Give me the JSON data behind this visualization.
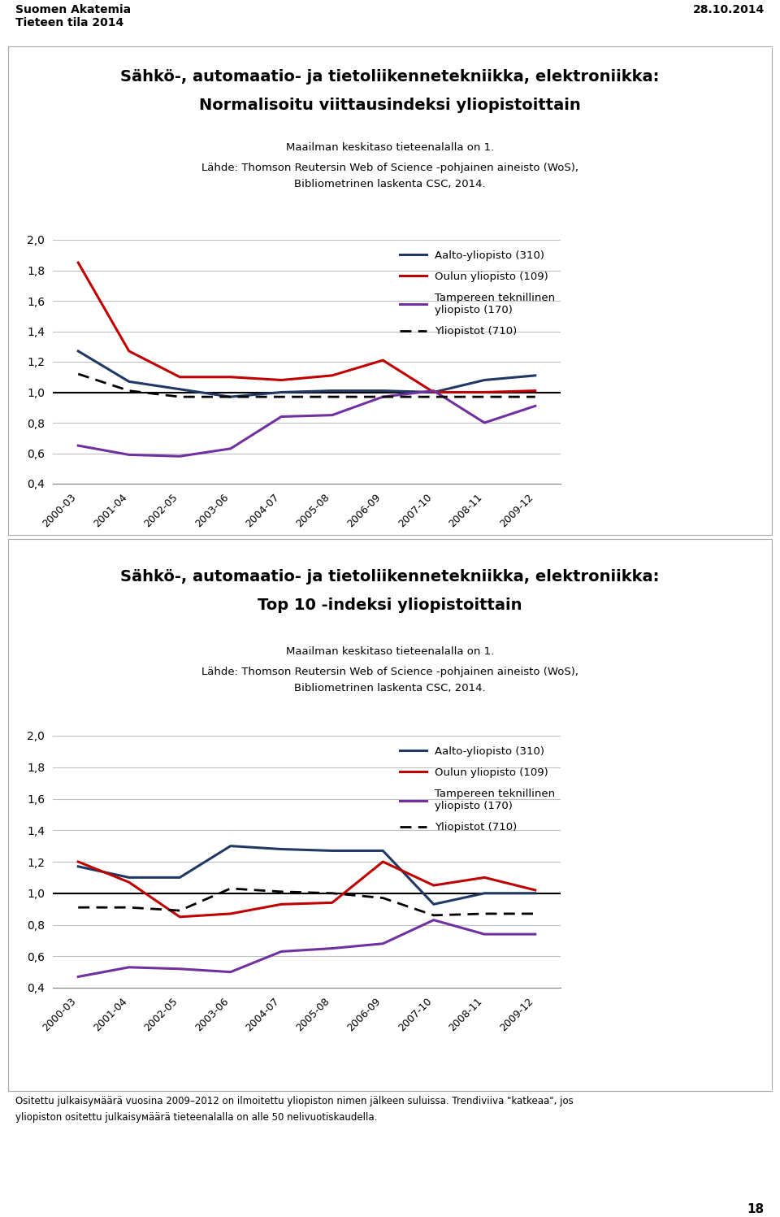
{
  "header_left": "Suomen Akatemia\nTieteen tila 2014",
  "header_right": "28.10.2014",
  "page_number": "18",
  "subtitle_line1": "Maailman keskitaso tieteenalalla on 1.",
  "subtitle_line2": "Lähde: Thomson Reutersin Web of Science -pohjainen aineisto (WoS),",
  "subtitle_line3": "Bibliometrinen laskenta CSC, 2014.",
  "footer_line1": "Ositettu julkaisумäärä vuosina 2009–2012 on ilmoitettu yliopiston nimen jälkeen suluissa. Trendiviiva \"katkeaa\", jos",
  "footer_line2": "yliopiston ositettu julkaisумäärä tieteenalalla on alle 50 nelivuotiskaudella.",
  "chart1_title_line1": "Sähkö-, automaatio- ja tietoliikennetekniikka, elektroniikka:",
  "chart1_title_line2": "Normalisoitu viittausindeksi yliopistoittain",
  "chart2_title_line1": "Sähkö-, automaatio- ja tietoliikennetekniikka, elektroniikka:",
  "chart2_title_line2": "Top 10 -indeksi yliopistoittain",
  "x_labels": [
    "2000-03",
    "2001-04",
    "2002-05",
    "2003-06",
    "2004-07",
    "2005-08",
    "2006-09",
    "2007-10",
    "2008-11",
    "2009-12"
  ],
  "ylim": [
    0.4,
    2.0
  ],
  "yticks": [
    0.4,
    0.6,
    0.8,
    1.0,
    1.2,
    1.4,
    1.6,
    1.8,
    2.0
  ],
  "legend_label_aalto": "Aalto-yliopisto (310)",
  "legend_label_oulu": "Oulun yliopisto (109)",
  "legend_label_tampere": "Tampereen teknillinen\nyliopisto (170)",
  "legend_label_yliopistot": "Yliopistot (710)",
  "color_aalto": "#1F3864",
  "color_oulu": "#C00000",
  "color_tampere": "#7030A0",
  "color_yliopistot": "#000000",
  "chart1": {
    "aalto": [
      1.27,
      1.07,
      1.02,
      0.97,
      1.0,
      1.01,
      1.01,
      1.0,
      1.08,
      1.11
    ],
    "oulu": [
      1.85,
      1.27,
      1.1,
      1.1,
      1.08,
      1.11,
      1.21,
      1.0,
      1.0,
      1.01
    ],
    "tampere": [
      0.65,
      0.59,
      0.58,
      0.63,
      0.84,
      0.85,
      0.97,
      1.01,
      0.8,
      0.91
    ],
    "yliopistot": [
      1.12,
      1.01,
      0.97,
      0.97,
      0.97,
      0.97,
      0.97,
      0.97,
      0.97,
      0.97
    ]
  },
  "chart2": {
    "aalto": [
      1.17,
      1.1,
      1.1,
      1.3,
      1.28,
      1.27,
      1.27,
      0.93,
      1.0,
      1.0
    ],
    "oulu": [
      1.2,
      1.07,
      0.85,
      0.87,
      0.93,
      0.94,
      1.2,
      1.05,
      1.1,
      1.02
    ],
    "tampere": [
      0.47,
      0.53,
      0.52,
      0.5,
      0.63,
      0.65,
      0.68,
      0.83,
      0.74,
      0.74
    ],
    "yliopistot": [
      0.91,
      0.91,
      0.89,
      1.03,
      1.01,
      1.0,
      0.97,
      0.86,
      0.87,
      0.87
    ]
  }
}
